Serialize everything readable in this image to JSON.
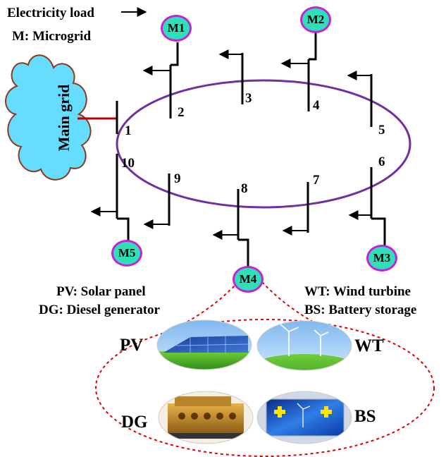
{
  "legend": {
    "electricity_load": "Electricity load",
    "microgrid": "M: Microgrid",
    "pv": "PV: Solar panel",
    "dg": "DG: Diesel generator",
    "wt": "WT: Wind turbine",
    "bs": "BS: Battery storage"
  },
  "main_grid": "Main grid",
  "buses": [
    "1",
    "2",
    "3",
    "4",
    "5",
    "6",
    "7",
    "8",
    "9",
    "10"
  ],
  "microgrids": [
    "M1",
    "M2",
    "M3",
    "M4",
    "M5"
  ],
  "resources": [
    "PV",
    "WT",
    "DG",
    "BS"
  ],
  "colors": {
    "ring": "#7030a0",
    "grid_link": "#c00000",
    "cloud_fill": "#66ddff",
    "cloud_edge": "#8b3a1a",
    "node_fill": "#2ee0b8",
    "node_border": "#c81fd8",
    "dashed_ellipse": "#e00000"
  },
  "icons": [
    "arrow-right-icon",
    "cloud-icon",
    "solar-panel-image",
    "wind-turbine-image",
    "diesel-generator-image",
    "battery-storage-image"
  ]
}
